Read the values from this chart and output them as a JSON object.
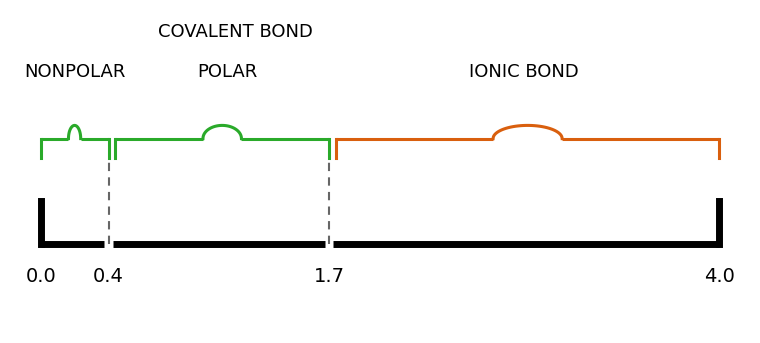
{
  "xmin": 0.0,
  "xmax": 4.0,
  "boundary1": 0.4,
  "boundary2": 1.7,
  "color_green": "#2aaa2a",
  "color_orange": "#d95f0e",
  "label_nonpolar": "NONPOLAR",
  "label_polar": "POLAR",
  "label_ionic": "IONIC BOND",
  "label_covalent": "COVALENT BOND",
  "fontsize_label": 13,
  "fontsize_tick": 14,
  "background": "#ffffff",
  "line_color_black": "#000000",
  "figwidth": 7.6,
  "figheight": 3.43,
  "dpi": 100
}
